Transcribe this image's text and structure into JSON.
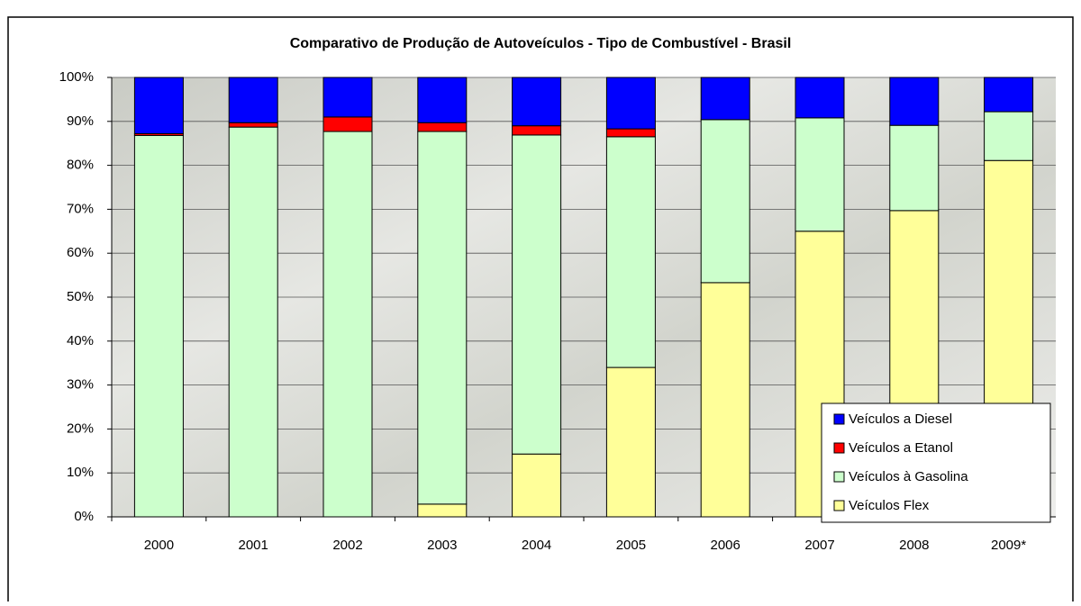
{
  "chart_data": {
    "type": "stacked_bar_100",
    "title": "Comparativo de Produção de Autoveículos - Tipo de Combustível - Brasil",
    "categories": [
      "2000",
      "2001",
      "2002",
      "2003",
      "2004",
      "2005",
      "2006",
      "2007",
      "2008",
      "2009*"
    ],
    "series": [
      {
        "name": "Veículos Flex",
        "color": "#ffff99",
        "values": [
          0,
          0,
          0,
          2.9,
          14.3,
          34,
          53.3,
          65,
          69.7,
          81.1
        ]
      },
      {
        "name": "Veículos à Gasolina",
        "color": "#ccffcc",
        "values": [
          86.8,
          88.7,
          87.7,
          84.8,
          72.6,
          52.5,
          37.1,
          25.8,
          19.4,
          11.1
        ]
      },
      {
        "name": "Veículos a Etanol",
        "color": "#ff0000",
        "values": [
          0.4,
          1,
          3.3,
          2,
          2.1,
          1.8,
          0,
          0,
          0,
          0
        ]
      },
      {
        "name": "Veículos a Diesel",
        "color": "#0000ff",
        "values": [
          12.8,
          10.3,
          9,
          10.3,
          11,
          11.7,
          9.6,
          9.2,
          10.9,
          7.8
        ]
      }
    ],
    "ylim": [
      0,
      100
    ],
    "yticks": [
      {
        "value": 0,
        "label": "0%"
      },
      {
        "value": 10,
        "label": "10%"
      },
      {
        "value": 20,
        "label": "20%"
      },
      {
        "value": 30,
        "label": "30%"
      },
      {
        "value": 40,
        "label": "40%"
      },
      {
        "value": 50,
        "label": "50%"
      },
      {
        "value": 60,
        "label": "60%"
      },
      {
        "value": 70,
        "label": "70%"
      },
      {
        "value": 80,
        "label": "80%"
      },
      {
        "value": 90,
        "label": "90%"
      },
      {
        "value": 100,
        "label": "100%"
      }
    ],
    "grid": true,
    "legend": "lower right"
  }
}
